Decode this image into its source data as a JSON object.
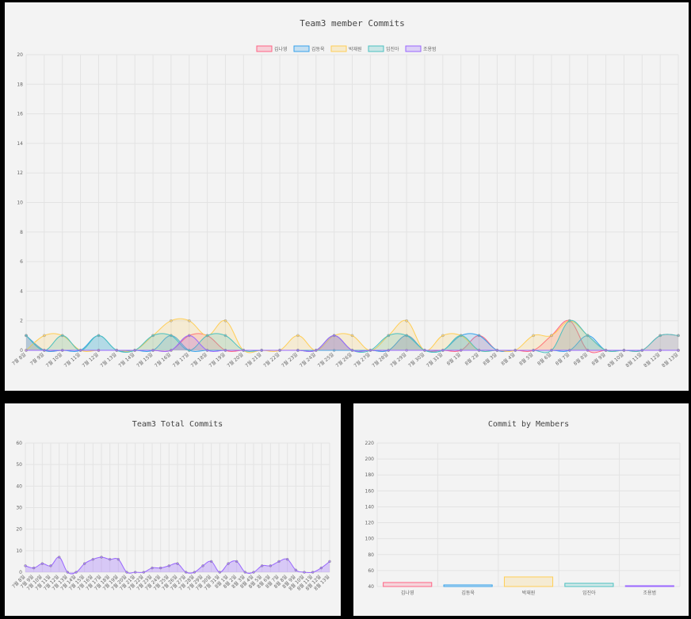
{
  "chart_data": [
    {
      "type": "line",
      "title": "Team3 member Commits",
      "legend_position": "top",
      "grid": true,
      "ylim": [
        0,
        20
      ],
      "yticks": [
        0,
        2,
        4,
        6,
        8,
        10,
        12,
        14,
        16,
        18,
        20
      ],
      "categories": [
        "7월 8일",
        "7월 9일",
        "7월 10일",
        "7월 11일",
        "7월 12일",
        "7월 13일",
        "7월 14일",
        "7월 15일",
        "7월 16일",
        "7월 17일",
        "7월 18일",
        "7월 19일",
        "7월 20일",
        "7월 21일",
        "7월 22일",
        "7월 23일",
        "7월 24일",
        "7월 25일",
        "7월 26일",
        "7월 27일",
        "7월 28일",
        "7월 29일",
        "7월 30일",
        "7월 31일",
        "8월 1일",
        "8월 2일",
        "8월 3일",
        "8월 4일",
        "8월 5일",
        "8월 6일",
        "8월 7일",
        "8월 8일",
        "8월 9일",
        "8월 10일",
        "8월 11일",
        "8월 12일",
        "8월 13일"
      ],
      "series": [
        {
          "name": "김나영",
          "color": "#ff6384",
          "values": [
            1,
            0,
            0,
            0,
            0,
            0,
            0,
            0,
            0,
            1,
            1,
            0,
            0,
            0,
            0,
            0,
            0,
            1,
            0,
            0,
            0,
            1,
            0,
            0,
            0,
            1,
            0,
            0,
            0,
            1,
            2,
            0,
            0,
            0,
            0,
            1,
            1
          ]
        },
        {
          "name": "김동욱",
          "color": "#36a2eb",
          "values": [
            1,
            0,
            0,
            0,
            1,
            0,
            0,
            0,
            1,
            0,
            0,
            0,
            0,
            0,
            0,
            0,
            0,
            0,
            0,
            0,
            0,
            1,
            0,
            0,
            1,
            1,
            0,
            0,
            0,
            0,
            0,
            1,
            0,
            0,
            0,
            0,
            0
          ]
        },
        {
          "name": "박재원",
          "color": "#ffce56",
          "values": [
            0,
            1,
            1,
            0,
            0,
            0,
            0,
            1,
            2,
            2,
            1,
            2,
            0,
            0,
            0,
            1,
            0,
            1,
            1,
            0,
            1,
            2,
            0,
            1,
            1,
            0,
            0,
            0,
            1,
            1,
            2,
            1,
            0,
            0,
            0,
            0,
            0
          ]
        },
        {
          "name": "임진아",
          "color": "#4bc0c0",
          "values": [
            1,
            0,
            1,
            0,
            1,
            0,
            0,
            1,
            1,
            0,
            1,
            1,
            0,
            0,
            0,
            0,
            0,
            1,
            0,
            0,
            1,
            1,
            0,
            0,
            1,
            0,
            0,
            0,
            0,
            0,
            2,
            1,
            0,
            0,
            0,
            1,
            1
          ]
        },
        {
          "name": "조용범",
          "color": "#9966ff",
          "values": [
            0,
            0,
            0,
            0,
            0,
            0,
            0,
            0,
            0,
            1,
            0,
            0,
            0,
            0,
            0,
            0,
            0,
            1,
            0,
            0,
            0,
            0,
            0,
            0,
            0,
            0,
            0,
            0,
            0,
            0,
            0,
            0,
            0,
            0,
            0,
            0,
            0
          ]
        }
      ]
    },
    {
      "type": "area",
      "title": "Team3 Total Commits",
      "grid": true,
      "ylim": [
        0,
        60
      ],
      "yticks": [
        0,
        10,
        20,
        30,
        40,
        50,
        60
      ],
      "color": "#9966ff",
      "categories": [
        "7월 8일",
        "7월 9일",
        "7월 10일",
        "7월 11일",
        "7월 12일",
        "7월 13일",
        "7월 14일",
        "7월 15일",
        "7월 16일",
        "7월 17일",
        "7월 18일",
        "7월 19일",
        "7월 20일",
        "7월 21일",
        "7월 22일",
        "7월 23일",
        "7월 24일",
        "7월 25일",
        "7월 26일",
        "7월 27일",
        "7월 28일",
        "7월 29일",
        "7월 30일",
        "7월 31일",
        "8월 1일",
        "8월 2일",
        "8월 3일",
        "8월 4일",
        "8월 5일",
        "8월 6일",
        "8월 7일",
        "8월 8일",
        "8월 9일",
        "8월 10일",
        "8월 11일",
        "8월 12일",
        "8월 13일"
      ],
      "values": [
        3,
        2,
        4,
        3,
        7,
        0,
        0,
        4,
        6,
        7,
        6,
        6,
        0,
        0,
        0,
        2,
        2,
        3,
        4,
        0,
        0,
        3,
        5,
        0,
        4,
        5,
        0,
        0,
        3,
        3,
        5,
        6,
        1,
        0,
        0,
        2,
        5
      ]
    },
    {
      "type": "bar",
      "title": "Commit by Members",
      "grid": true,
      "ylim": [
        40,
        220
      ],
      "yticks": [
        40,
        60,
        80,
        100,
        120,
        140,
        160,
        180,
        200,
        220
      ],
      "categories": [
        "김나영",
        "김동욱",
        "박재원",
        "임진아",
        "조용범"
      ],
      "values": [
        45,
        42,
        52,
        44,
        41
      ],
      "colors": [
        "#ff6384",
        "#36a2eb",
        "#ffce56",
        "#4bc0c0",
        "#9966ff"
      ]
    }
  ]
}
